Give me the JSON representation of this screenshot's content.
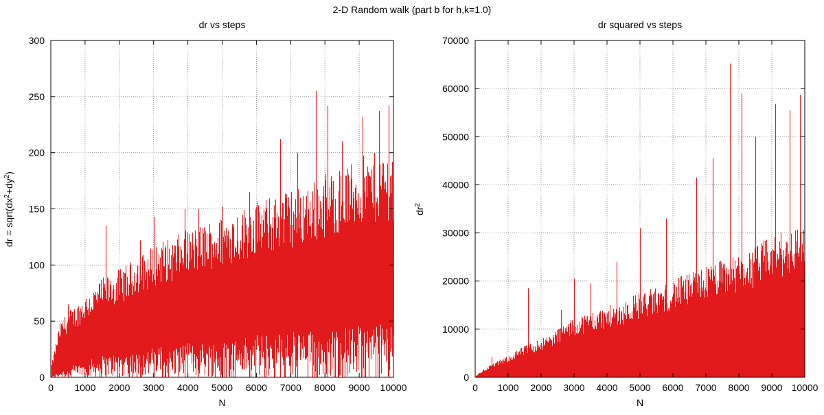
{
  "figure": {
    "suptitle": "2-D Random walk (part b for h,k=1.0)",
    "mark_color": "#e31a1c",
    "grid_color": "#9a9a9a"
  },
  "chart_data": [
    {
      "type": "bar",
      "title": "dr vs steps",
      "xlabel": "N",
      "ylabel": {
        "text": "dr = sqrt(dx",
        "sup1": "2",
        "mid": "+dy",
        "sup2": "2",
        "end": ")"
      },
      "xlim": [
        0,
        10000
      ],
      "ylim": [
        0,
        300
      ],
      "xticks": [
        "0",
        "1000",
        "2000",
        "3000",
        "4000",
        "5000",
        "6000",
        "7000",
        "8000",
        "9000",
        "10000"
      ],
      "yticks": [
        "0",
        "50",
        "100",
        "150",
        "200",
        "250",
        "300"
      ],
      "grid": true,
      "series": [
        {
          "x": [
            0,
            250,
            500,
            750,
            1000,
            1250,
            1500,
            1750,
            2000,
            2250,
            2500,
            2750,
            3000,
            3250,
            3500,
            3750,
            4000,
            4250,
            4500,
            4750,
            5000,
            5250,
            5500,
            5750,
            6000,
            6250,
            6500,
            6750,
            7000,
            7250,
            7500,
            7750,
            8000,
            8250,
            8500,
            8750,
            9000,
            9250,
            9500,
            9750,
            10000
          ],
          "upper": [
            8,
            42,
            52,
            57,
            65,
            70,
            78,
            80,
            85,
            88,
            96,
            98,
            104,
            108,
            108,
            112,
            116,
            118,
            122,
            124,
            126,
            130,
            132,
            135,
            138,
            140,
            142,
            146,
            148,
            150,
            152,
            156,
            160,
            162,
            165,
            168,
            172,
            174,
            176,
            178,
            180
          ],
          "lower": [
            0,
            4,
            7,
            8,
            10,
            12,
            14,
            15,
            16,
            16,
            17,
            18,
            19,
            20,
            20,
            21,
            22,
            22,
            23,
            24,
            24,
            25,
            26,
            26,
            27,
            28,
            28,
            29,
            30,
            30,
            30,
            30,
            31,
            32,
            32,
            32,
            33,
            33,
            34,
            34,
            35
          ],
          "spikes": [
            [
              500,
              65
            ],
            [
              1600,
              135
            ],
            [
              2600,
              122
            ],
            [
              3000,
              143
            ],
            [
              3900,
              150
            ],
            [
              4300,
              150
            ],
            [
              5000,
              152
            ],
            [
              5800,
              165
            ],
            [
              6700,
              212
            ],
            [
              7200,
              200
            ],
            [
              7730,
              255
            ],
            [
              8080,
              242
            ],
            [
              8500,
              210
            ],
            [
              9100,
              232
            ],
            [
              9570,
              237
            ],
            [
              9850,
              242
            ]
          ]
        }
      ]
    },
    {
      "type": "bar",
      "title": "dr squared vs steps",
      "xlabel": "N",
      "ylabel": {
        "text": "dr",
        "sup1": "2"
      },
      "xlim": [
        0,
        10000
      ],
      "ylim": [
        0,
        70000
      ],
      "xticks": [
        "0",
        "1000",
        "2000",
        "3000",
        "4000",
        "5000",
        "6000",
        "7000",
        "8000",
        "9000",
        "10000"
      ],
      "yticks": [
        "0",
        "10000",
        "20000",
        "30000",
        "40000",
        "50000",
        "60000",
        "70000"
      ],
      "grid": true,
      "series": [
        {
          "x": [
            0,
            250,
            500,
            750,
            1000,
            1250,
            1500,
            1750,
            2000,
            2250,
            2500,
            2750,
            3000,
            3250,
            3500,
            3750,
            4000,
            4250,
            4500,
            4750,
            5000,
            5250,
            5500,
            5750,
            6000,
            6250,
            6500,
            6750,
            7000,
            7250,
            7500,
            7750,
            8000,
            8250,
            8500,
            8750,
            9000,
            9250,
            9500,
            9750,
            10000
          ],
          "upper": [
            200,
            1500,
            2500,
            3200,
            4000,
            5000,
            5800,
            6500,
            7200,
            7800,
            9000,
            10000,
            11000,
            11500,
            12000,
            12500,
            13000,
            13500,
            14000,
            15000,
            15500,
            16000,
            16500,
            17000,
            18000,
            18500,
            19000,
            20000,
            20500,
            21000,
            21500,
            22000,
            22500,
            23000,
            24000,
            25000,
            26000,
            26500,
            27000,
            28000,
            29000
          ],
          "lower": [
            0,
            0,
            0,
            0,
            0,
            0,
            0,
            0,
            0,
            0,
            0,
            0,
            0,
            0,
            0,
            0,
            0,
            0,
            0,
            0,
            0,
            0,
            0,
            0,
            0,
            0,
            0,
            0,
            0,
            0,
            0,
            0,
            0,
            0,
            0,
            0,
            0,
            0,
            0,
            0,
            0
          ],
          "spikes": [
            [
              500,
              4200
            ],
            [
              1600,
              18500
            ],
            [
              2600,
              14000
            ],
            [
              3000,
              20500
            ],
            [
              3500,
              19500
            ],
            [
              4300,
              24000
            ],
            [
              5000,
              31000
            ],
            [
              5800,
              33000
            ],
            [
              6700,
              41500
            ],
            [
              7200,
              45500
            ],
            [
              7730,
              65200
            ],
            [
              8080,
              59000
            ],
            [
              8500,
              50000
            ],
            [
              9100,
              56800
            ],
            [
              9550,
              55500
            ],
            [
              9850,
              58700
            ]
          ]
        }
      ]
    }
  ]
}
